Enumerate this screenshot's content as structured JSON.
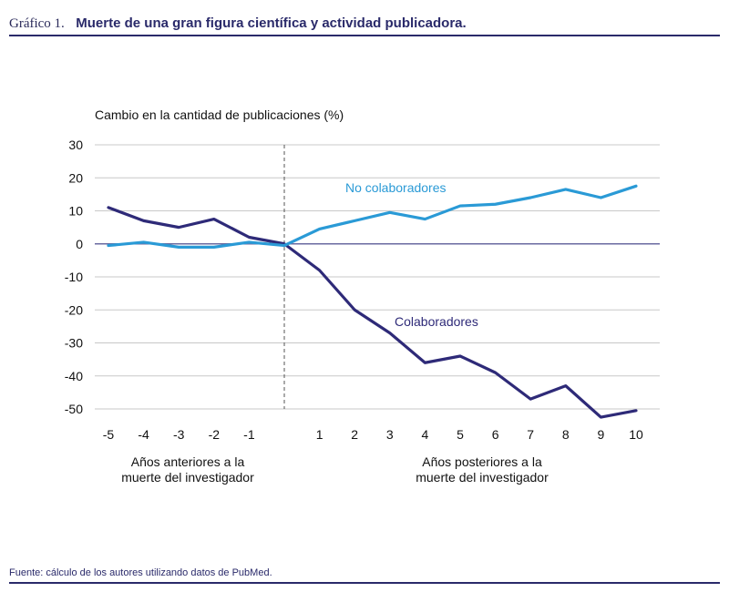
{
  "header": {
    "figure_label": "Gráfico 1.",
    "title": "Muerte de una gran figura científica y actividad publicadora."
  },
  "footer": {
    "source": "Fuente: cálculo de los autores utilizando datos de PubMed."
  },
  "colors": {
    "colaboradores": "#2e2a78",
    "no_colaboradores": "#2a9ad6",
    "grid": "#c8c8c8",
    "zero": "#6a6aa0"
  },
  "chart_data": {
    "type": "line",
    "title": "Muerte de una gran figura científica y actividad publicadora.",
    "ylabel": "Cambio en la cantidad de publicaciones (%)",
    "ylim": [
      -50,
      30
    ],
    "yticks": [
      "30",
      "20",
      "10",
      "0",
      "-10",
      "-20",
      "-30",
      "-40",
      "-50"
    ],
    "x": [
      -5,
      -4,
      -3,
      -2,
      -1,
      0,
      1,
      2,
      3,
      4,
      5,
      6,
      7,
      8,
      9,
      10
    ],
    "xtick_labels": [
      "-5",
      "-4",
      "-3",
      "-2",
      "-1",
      "",
      "1",
      "2",
      "3",
      "4",
      "5",
      "6",
      "7",
      "8",
      "9",
      "10"
    ],
    "x_group_labels": {
      "before": "Años anteriores a la muerte del investigador",
      "after": "Años posteriores a la muerte del investigador"
    },
    "series": [
      {
        "name": "Colaboradores",
        "values": [
          11,
          7,
          5,
          7.5,
          2,
          0,
          -8,
          -20,
          -27,
          -36,
          -34,
          -39,
          -47,
          -43,
          -52.5,
          -50.5
        ]
      },
      {
        "name": "No colaboradores",
        "values": [
          -0.5,
          0.5,
          -1,
          -1,
          0.5,
          -0.5,
          4.5,
          7,
          9.5,
          7.5,
          11.5,
          12,
          14,
          16.5,
          14,
          17.5
        ]
      }
    ],
    "annotations": [
      "No colaboradores",
      "Colaboradores"
    ]
  }
}
